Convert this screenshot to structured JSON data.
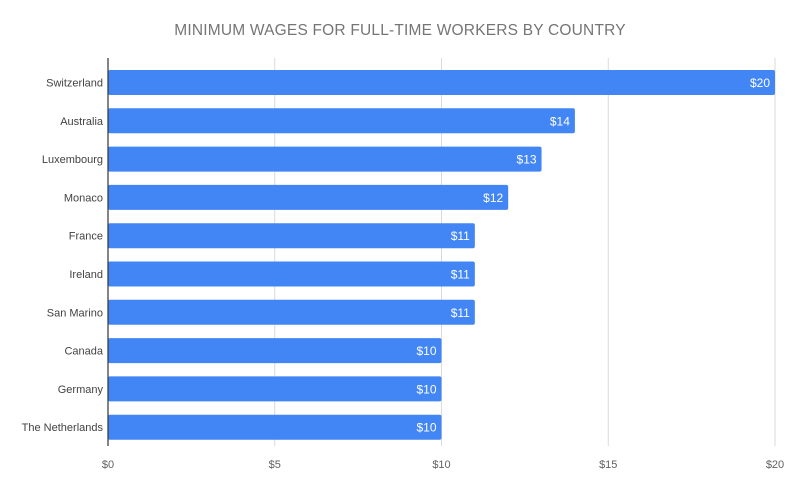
{
  "chart_data": {
    "type": "bar",
    "orientation": "horizontal",
    "title": "MINIMUM WAGES FOR FULL-TIME WORKERS BY COUNTRY",
    "xlabel": "",
    "ylabel": "",
    "categories": [
      "Switzerland",
      "Australia",
      "Luxembourg",
      "Monaco",
      "France",
      "Ireland",
      "San Marino",
      "Canada",
      "Germany",
      "The Netherlands"
    ],
    "values": [
      20,
      14,
      13,
      12,
      11,
      11,
      11,
      10,
      10,
      10
    ],
    "data_labels": [
      "$20",
      "$14",
      "$13",
      "$12",
      "$11",
      "$11",
      "$11",
      "$10",
      "$10",
      "$10"
    ],
    "xlim": [
      0,
      20
    ],
    "x_ticks": [
      0,
      5,
      10,
      15,
      20
    ],
    "x_tick_labels": [
      "$0",
      "$5",
      "$10",
      "$15",
      "$20"
    ],
    "grid": true,
    "legend": "none",
    "colors": {
      "bar": "#4285f4",
      "grid": "#d9d9d9",
      "axis": "#333333"
    }
  }
}
